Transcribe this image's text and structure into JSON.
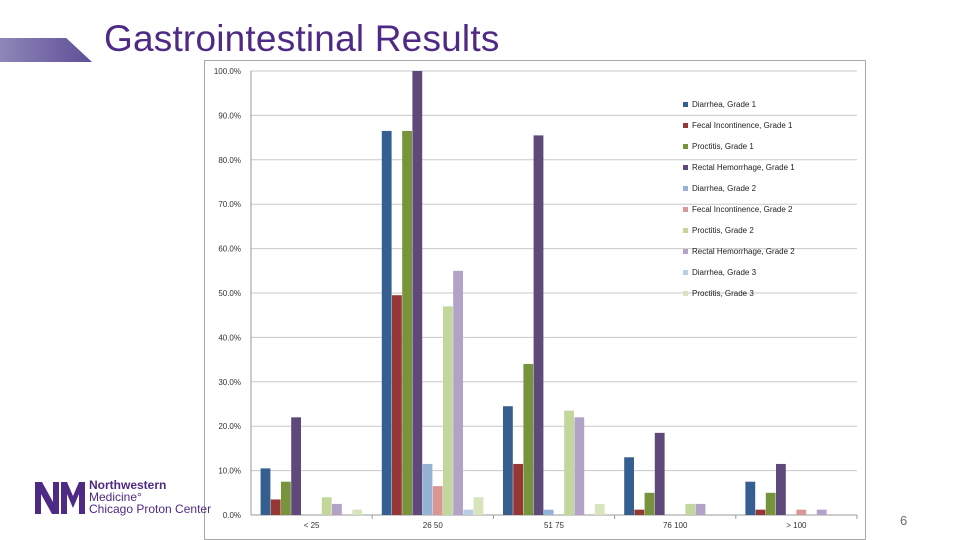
{
  "slide": {
    "title": "Gastrointestinal Results",
    "page_number": "6"
  },
  "logo": {
    "line1": "Northwestern",
    "line2": "Medicine°",
    "line3": "Chicago Proton Center",
    "color": "#4e2a84"
  },
  "chart_data": {
    "type": "bar",
    "categories": [
      "< 25",
      "26 50",
      "51 75",
      "76 100",
      "> 100"
    ],
    "ylim": [
      0,
      100
    ],
    "yticks": [
      "0.0%",
      "10.0%",
      "20.0%",
      "30.0%",
      "40.0%",
      "50.0%",
      "60.0%",
      "70.0%",
      "80.0%",
      "90.0%",
      "100.0%"
    ],
    "grid": true,
    "legend_position": "right",
    "series": [
      {
        "name": "Diarrhea, Grade 1",
        "color": "#365f91",
        "values": [
          10.5,
          86.5,
          24.5,
          13,
          7.5
        ]
      },
      {
        "name": "Fecal Incontinence, Grade 1",
        "color": "#953735",
        "values": [
          3.5,
          49.5,
          11.5,
          1.2,
          1.2
        ]
      },
      {
        "name": "Proctitis, Grade 1",
        "color": "#77933c",
        "values": [
          7.5,
          86.5,
          34,
          5,
          5
        ]
      },
      {
        "name": "Rectal Hemorrhage, Grade 1",
        "color": "#5f497a",
        "values": [
          22,
          100,
          85.5,
          18.5,
          11.5
        ]
      },
      {
        "name": "Diarrhea, Grade 2",
        "color": "#95b3d7",
        "values": [
          0,
          11.5,
          1.2,
          0,
          0
        ]
      },
      {
        "name": "Fecal Incontinence, Grade 2",
        "color": "#da9694",
        "values": [
          0,
          6.5,
          0,
          0,
          1.2
        ]
      },
      {
        "name": "Proctitis, Grade 2",
        "color": "#c3d69b",
        "values": [
          4,
          47,
          23.5,
          2.5,
          0
        ]
      },
      {
        "name": "Rectal Hemorrhage, Grade 2",
        "color": "#b3a2c7",
        "values": [
          2.5,
          55,
          22,
          2.5,
          1.2
        ]
      },
      {
        "name": "Diarrhea, Grade 3",
        "color": "#b9cde5",
        "values": [
          0,
          1.2,
          0,
          0,
          0
        ]
      },
      {
        "name": "Proctitis, Grade 3",
        "color": "#d7e4bd",
        "values": [
          1.2,
          4,
          2.5,
          0,
          0
        ]
      }
    ]
  }
}
